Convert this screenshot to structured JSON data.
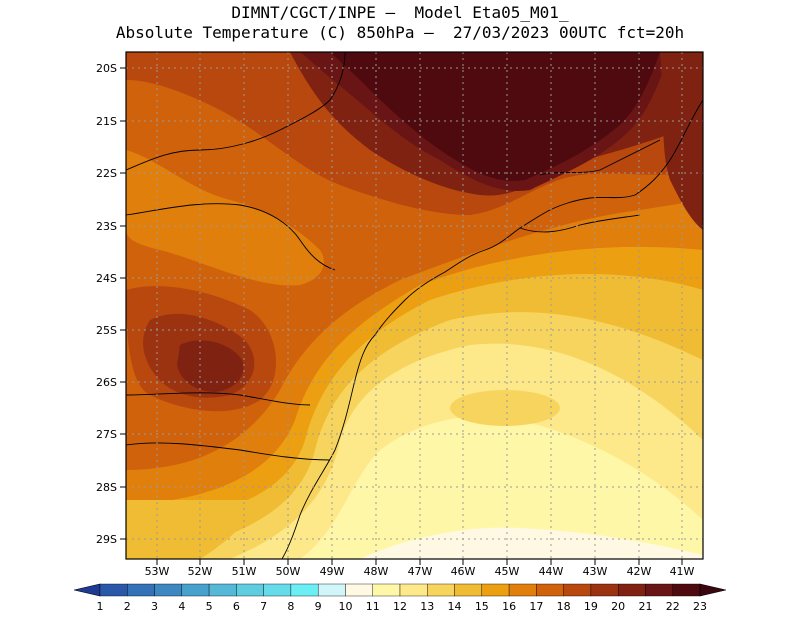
{
  "title": {
    "line1": "DIMNT/CGCT/INPE –  Model Eta05_M01_",
    "line2": "Absolute Temperature (C) 850hPa –  27/03/2023 00UTC fct=20h"
  },
  "map": {
    "lat_labels": [
      "20S",
      "21S",
      "22S",
      "23S",
      "24S",
      "25S",
      "26S",
      "27S",
      "28S",
      "29S"
    ],
    "lon_labels": [
      "53W",
      "52W",
      "51W",
      "50W",
      "49W",
      "48W",
      "47W",
      "46W",
      "45W",
      "44W",
      "43W",
      "42W",
      "41W"
    ],
    "grid": "dotted",
    "region": "South/Southeast Brazil"
  },
  "colorbar": {
    "labels": [
      "1",
      "2",
      "3",
      "4",
      "5",
      "6",
      "7",
      "8",
      "9",
      "10",
      "11",
      "12",
      "13",
      "14",
      "15",
      "16",
      "17",
      "18",
      "19",
      "20",
      "21",
      "22",
      "23"
    ],
    "colors": [
      "#1f3a93",
      "#2a57a8",
      "#3471b6",
      "#3e88c2",
      "#48a0cc",
      "#55b8d7",
      "#5fcce0",
      "#66dceb",
      "#6ceff4",
      "#d0f6fa",
      "#fff8e3",
      "#fff7a8",
      "#fde88a",
      "#f7d45e",
      "#f0bc33",
      "#ed9f12",
      "#e07f0c",
      "#d0620c",
      "#b8480e",
      "#9b3311",
      "#7f2212",
      "#6a1515",
      "#4f0a0f",
      "#3a0710"
    ]
  }
}
